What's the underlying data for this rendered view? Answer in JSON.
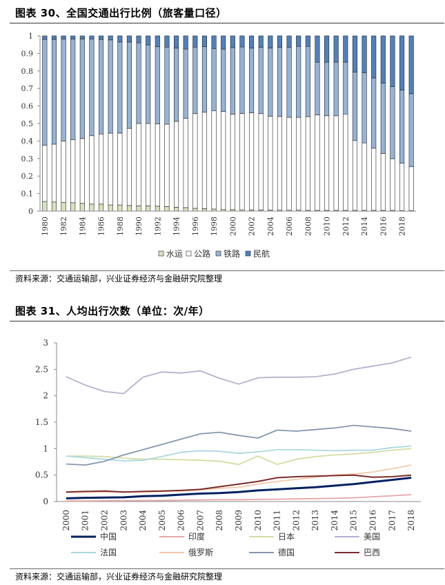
{
  "figure30": {
    "title": "图表 30、全国交通出行比例（旅客量口径）",
    "source": "资料来源：交通运输部，兴业证券经济与金融研究院整理"
  },
  "figure31": {
    "title": "图表 31、人均出行次数（单位：次/年）",
    "source": "资料来源：交通运输部，兴业证券经济与金融研究院整理"
  },
  "colors": {
    "water": "#d7e4bd",
    "road": "#ffffff",
    "rail": "#95b3d7",
    "air": "#4f81bd",
    "China": "#002060",
    "India": "#e6a6a6",
    "Japan": "#d4dda3",
    "USA": "#b8b0d0",
    "France": "#a9d8e0",
    "Russia": "#f6c9a7",
    "Germany": "#8496b0",
    "Brazil": "#7b2b2b"
  },
  "chart_data": [
    {
      "type": "bar",
      "stacked": true,
      "categories": [
        "1980",
        "1981",
        "1982",
        "1983",
        "1984",
        "1985",
        "1986",
        "1987",
        "1988",
        "1989",
        "1990",
        "1991",
        "1992",
        "1993",
        "1994",
        "1995",
        "1996",
        "1997",
        "1998",
        "1999",
        "2000",
        "2001",
        "2002",
        "2003",
        "2004",
        "2005",
        "2006",
        "2007",
        "2008",
        "2009",
        "2010",
        "2011",
        "2012",
        "2013",
        "2014",
        "2015",
        "2016",
        "2017",
        "2018",
        "2019"
      ],
      "tick_labels": [
        "1980",
        "",
        "1982",
        "",
        "1984",
        "",
        "1986",
        "",
        "1988",
        "",
        "1990",
        "",
        "1992",
        "",
        "1994",
        "",
        "1996",
        "",
        "1998",
        "",
        "2000",
        "",
        "2002",
        "",
        "2004",
        "",
        "2006",
        "",
        "2008",
        "",
        "2010",
        "",
        "2012",
        "",
        "2014",
        "",
        "2016",
        "",
        "2018",
        ""
      ],
      "yticks": [
        "0",
        "0.1",
        "0.2",
        "0.3",
        "0.4",
        "0.5",
        "0.6",
        "0.7",
        "0.8",
        "0.9",
        "1"
      ],
      "ylim": [
        0,
        1
      ],
      "series": [
        {
          "name": "水运",
          "key": "water",
          "values": [
            0.055,
            0.052,
            0.05,
            0.048,
            0.044,
            0.04,
            0.04,
            0.035,
            0.035,
            0.032,
            0.03,
            0.03,
            0.028,
            0.026,
            0.022,
            0.02,
            0.016,
            0.014,
            0.012,
            0.009,
            0.008,
            0.007,
            0.006,
            0.006,
            0.006,
            0.005,
            0.005,
            0.005,
            0.004,
            0.004,
            0.004,
            0.004,
            0.004,
            0.004,
            0.004,
            0.004,
            0.004,
            0.004,
            0.003,
            0.003
          ]
        },
        {
          "name": "公路",
          "key": "road",
          "values": [
            0.32,
            0.33,
            0.35,
            0.36,
            0.37,
            0.39,
            0.4,
            0.41,
            0.41,
            0.44,
            0.47,
            0.47,
            0.47,
            0.47,
            0.49,
            0.51,
            0.54,
            0.55,
            0.56,
            0.56,
            0.545,
            0.55,
            0.555,
            0.55,
            0.535,
            0.535,
            0.53,
            0.53,
            0.535,
            0.545,
            0.54,
            0.54,
            0.55,
            0.4,
            0.385,
            0.355,
            0.325,
            0.295,
            0.27,
            0.25
          ]
        },
        {
          "name": "铁路",
          "key": "rail",
          "values": [
            0.605,
            0.598,
            0.582,
            0.574,
            0.568,
            0.552,
            0.54,
            0.532,
            0.52,
            0.493,
            0.46,
            0.448,
            0.44,
            0.44,
            0.418,
            0.395,
            0.38,
            0.375,
            0.356,
            0.356,
            0.38,
            0.38,
            0.369,
            0.379,
            0.389,
            0.395,
            0.4,
            0.405,
            0.401,
            0.301,
            0.306,
            0.306,
            0.296,
            0.39,
            0.401,
            0.401,
            0.401,
            0.411,
            0.417,
            0.417
          ]
        },
        {
          "name": "民航",
          "key": "air",
          "values": [
            0.02,
            0.02,
            0.018,
            0.018,
            0.018,
            0.018,
            0.02,
            0.023,
            0.035,
            0.035,
            0.04,
            0.052,
            0.062,
            0.064,
            0.07,
            0.075,
            0.064,
            0.061,
            0.072,
            0.075,
            0.067,
            0.063,
            0.07,
            0.065,
            0.07,
            0.065,
            0.065,
            0.06,
            0.06,
            0.15,
            0.15,
            0.15,
            0.15,
            0.206,
            0.21,
            0.24,
            0.27,
            0.29,
            0.31,
            0.33
          ]
        }
      ]
    },
    {
      "type": "line",
      "x": [
        "2000",
        "2001",
        "2002",
        "2003",
        "2004",
        "2005",
        "2006",
        "2007",
        "2008",
        "2009",
        "2010",
        "2011",
        "2012",
        "2013",
        "2014",
        "2015",
        "2016",
        "2017",
        "2018"
      ],
      "yticks": [
        "0",
        "0.5",
        "1",
        "1.5",
        "2",
        "2.5",
        "3"
      ],
      "ylim": [
        0,
        3
      ],
      "series": [
        {
          "name": "中国",
          "key": "China",
          "values": [
            0.06,
            0.07,
            0.075,
            0.08,
            0.1,
            0.11,
            0.13,
            0.15,
            0.16,
            0.18,
            0.21,
            0.23,
            0.25,
            0.27,
            0.3,
            0.33,
            0.37,
            0.41,
            0.45
          ]
        },
        {
          "name": "印度",
          "key": "India",
          "values": [
            0.01,
            0.01,
            0.015,
            0.015,
            0.02,
            0.02,
            0.025,
            0.03,
            0.035,
            0.035,
            0.04,
            0.045,
            0.05,
            0.055,
            0.06,
            0.07,
            0.09,
            0.11,
            0.13
          ]
        },
        {
          "name": "日本",
          "key": "Japan",
          "values": [
            0.86,
            0.86,
            0.85,
            0.82,
            0.8,
            0.8,
            0.79,
            0.78,
            0.76,
            0.7,
            0.86,
            0.7,
            0.8,
            0.85,
            0.88,
            0.9,
            0.93,
            0.97,
            1.0
          ]
        },
        {
          "name": "美国",
          "key": "USA",
          "values": [
            2.36,
            2.2,
            2.08,
            2.04,
            2.35,
            2.45,
            2.43,
            2.47,
            2.33,
            2.22,
            2.34,
            2.35,
            2.35,
            2.36,
            2.41,
            2.5,
            2.56,
            2.62,
            2.73
          ]
        },
        {
          "name": "法国",
          "key": "France",
          "values": [
            0.86,
            0.83,
            0.8,
            0.77,
            0.78,
            0.85,
            0.93,
            0.96,
            0.95,
            0.91,
            0.94,
            0.98,
            0.98,
            0.97,
            0.96,
            0.97,
            0.97,
            1.02,
            1.05
          ]
        },
        {
          "name": "俄罗斯",
          "key": "Russia",
          "values": [
            0.17,
            0.18,
            0.18,
            0.18,
            0.18,
            0.19,
            0.2,
            0.22,
            0.25,
            0.27,
            0.33,
            0.38,
            0.42,
            0.46,
            0.5,
            0.52,
            0.56,
            0.62,
            0.69
          ]
        },
        {
          "name": "德国",
          "key": "Germany",
          "values": [
            0.71,
            0.69,
            0.76,
            0.88,
            0.98,
            1.08,
            1.18,
            1.28,
            1.31,
            1.25,
            1.2,
            1.35,
            1.33,
            1.36,
            1.39,
            1.44,
            1.41,
            1.38,
            1.33
          ]
        },
        {
          "name": "巴西",
          "key": "Brazil",
          "values": [
            0.18,
            0.19,
            0.2,
            0.18,
            0.19,
            0.2,
            0.21,
            0.23,
            0.28,
            0.33,
            0.38,
            0.45,
            0.47,
            0.48,
            0.49,
            0.5,
            0.46,
            0.47,
            0.5
          ]
        }
      ]
    }
  ]
}
